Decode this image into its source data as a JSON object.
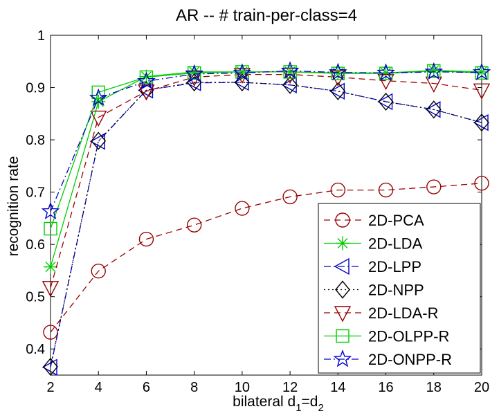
{
  "chart_data": {
    "type": "line",
    "title": "AR -- # train-per-class=4",
    "xlabel": "bilateral d1=d2",
    "xlabel_parts": {
      "base": "bilateral d",
      "sub1": "1",
      "eq": "=d",
      "sub2": "2"
    },
    "ylabel": "recognition rate",
    "xlim": [
      2,
      20
    ],
    "ylim": [
      0.35,
      1.0
    ],
    "xticks": [
      2,
      4,
      6,
      8,
      10,
      12,
      14,
      16,
      18,
      20
    ],
    "yticks": [
      0.4,
      0.5,
      0.6,
      0.7,
      0.8,
      0.9,
      1.0
    ],
    "ytick_labels": [
      "0.4",
      "0.5",
      "0.6",
      "0.7",
      "0.8",
      "0.9",
      "1"
    ],
    "legend_location": "bottom-right",
    "x": [
      2,
      4,
      6,
      8,
      10,
      12,
      14,
      16,
      18,
      20
    ],
    "series": [
      {
        "name": "2D-PCA",
        "color": "#990000",
        "dash": "dashed",
        "marker": "circle",
        "values": [
          0.432,
          0.549,
          0.61,
          0.637,
          0.669,
          0.691,
          0.704,
          0.704,
          0.71,
          0.717
        ]
      },
      {
        "name": "2D-LDA",
        "color": "#00cc00",
        "dash": "solid",
        "marker": "asterisk",
        "values": [
          0.557,
          0.873,
          0.921,
          0.93,
          0.93,
          0.93,
          0.928,
          0.928,
          0.933,
          0.93
        ]
      },
      {
        "name": "2D-LPP",
        "color": "#0000cc",
        "dash": "dashdot",
        "marker": "triangle-left",
        "values": [
          0.365,
          0.797,
          0.895,
          0.909,
          0.91,
          0.905,
          0.893,
          0.873,
          0.858,
          0.833
        ]
      },
      {
        "name": "2D-NPP",
        "color": "#000000",
        "dash": "dotted",
        "marker": "diamond",
        "values": [
          0.366,
          0.798,
          0.895,
          0.91,
          0.91,
          0.905,
          0.893,
          0.873,
          0.858,
          0.833
        ]
      },
      {
        "name": "2D-LDA-R",
        "color": "#990000",
        "dash": "dashed",
        "marker": "triangle-down",
        "values": [
          0.517,
          0.843,
          0.893,
          0.92,
          0.925,
          0.925,
          0.92,
          0.913,
          0.908,
          0.895
        ]
      },
      {
        "name": "2D-OLPP-R",
        "color": "#00cc00",
        "dash": "solid",
        "marker": "square",
        "values": [
          0.63,
          0.891,
          0.92,
          0.928,
          0.93,
          0.93,
          0.927,
          0.927,
          0.932,
          0.928
        ]
      },
      {
        "name": "2D-ONPP-R",
        "color": "#0000cc",
        "dash": "dashdot",
        "marker": "star",
        "values": [
          0.663,
          0.88,
          0.912,
          0.926,
          0.928,
          0.932,
          0.929,
          0.928,
          0.93,
          0.929
        ]
      }
    ]
  }
}
